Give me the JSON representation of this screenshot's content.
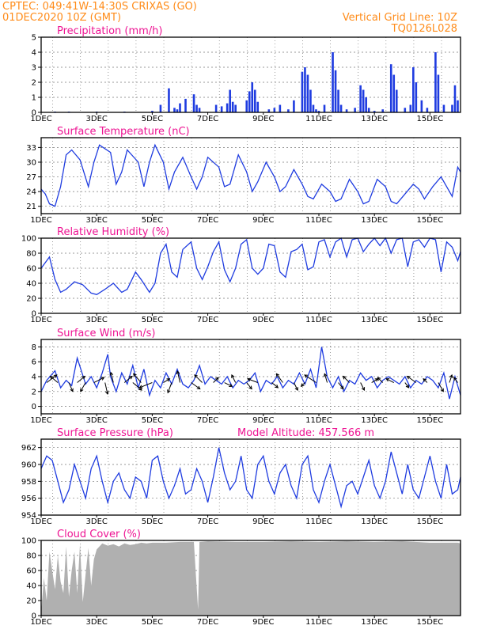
{
  "header": {
    "line1": "CPTEC:   049:41W-14:30S   CRIXAS (GO)",
    "line2": "01DEC2020 10Z (GMT)",
    "grid_note": "Vertical Grid Line: 10Z",
    "run_code": "TQ0126L028"
  },
  "colors": {
    "header": "#ff8c1a",
    "title": "#ee1493",
    "series": "#1f3ce0",
    "cloud": "#b0b0b0",
    "gridline": "#777777"
  },
  "x_ticks": [
    "1DEC",
    "3DEC",
    "5DEC",
    "7DEC",
    "9DEC",
    "11DEC",
    "13DEC",
    "15DEC"
  ],
  "x_range_days": [
    1,
    16.1
  ],
  "chart_data": [
    {
      "id": "precipitation",
      "type": "bar",
      "title": "Precipitation (mm/h)",
      "ylim": [
        0,
        5
      ],
      "yticks": [
        "0",
        "1",
        "2",
        "3",
        "4",
        "5"
      ],
      "x": [
        1.5,
        2.0,
        3.0,
        4.0,
        5.0,
        5.3,
        5.6,
        5.8,
        5.9,
        6.0,
        6.2,
        6.5,
        6.6,
        6.7,
        7.3,
        7.5,
        7.7,
        7.8,
        7.9,
        8.0,
        8.4,
        8.5,
        8.6,
        8.7,
        8.8,
        9.2,
        9.4,
        9.6,
        9.9,
        10.1,
        10.4,
        10.5,
        10.6,
        10.7,
        10.8,
        10.9,
        11.0,
        11.2,
        11.5,
        11.6,
        11.7,
        11.8,
        12.0,
        12.3,
        12.5,
        12.6,
        12.7,
        12.8,
        13.0,
        13.3,
        13.6,
        13.7,
        13.8,
        14.1,
        14.3,
        14.4,
        14.5,
        14.7,
        14.9,
        15.2,
        15.3,
        15.5,
        15.8,
        15.9,
        16.0
      ],
      "values": [
        0.05,
        0.05,
        0.05,
        0.05,
        0.1,
        0.5,
        1.6,
        0.3,
        0.2,
        0.6,
        0.9,
        1.2,
        0.5,
        0.3,
        0.5,
        0.4,
        0.6,
        1.5,
        0.7,
        0.5,
        0.8,
        1.4,
        2.0,
        1.5,
        0.7,
        0.2,
        0.3,
        0.5,
        0.2,
        0.8,
        2.7,
        3.0,
        2.5,
        1.5,
        0.5,
        0.2,
        0.1,
        0.5,
        4.0,
        2.8,
        1.5,
        0.5,
        0.2,
        0.3,
        1.8,
        1.5,
        1.0,
        0.3,
        0.1,
        0.2,
        3.2,
        2.5,
        1.5,
        0.3,
        0.5,
        3.0,
        2.0,
        0.8,
        0.3,
        4.0,
        2.5,
        0.5,
        0.5,
        1.8,
        0.8
      ]
    },
    {
      "id": "surface-temperature",
      "type": "line",
      "title": "Surface Temperature (nC)",
      "ylim": [
        19.5,
        35
      ],
      "yticks": [
        "21",
        "24",
        "27",
        "30",
        "33"
      ],
      "x": [
        1.0,
        1.15,
        1.3,
        1.5,
        1.7,
        1.9,
        2.1,
        2.4,
        2.7,
        2.9,
        3.1,
        3.5,
        3.7,
        3.9,
        4.1,
        4.5,
        4.7,
        4.9,
        5.1,
        5.4,
        5.6,
        5.8,
        6.1,
        6.4,
        6.6,
        6.8,
        7.0,
        7.4,
        7.6,
        7.8,
        8.1,
        8.4,
        8.6,
        8.8,
        9.1,
        9.4,
        9.6,
        9.8,
        10.1,
        10.4,
        10.6,
        10.8,
        11.1,
        11.4,
        11.6,
        11.8,
        12.1,
        12.4,
        12.6,
        12.8,
        13.1,
        13.4,
        13.6,
        13.8,
        14.1,
        14.4,
        14.6,
        14.8,
        15.1,
        15.4,
        15.6,
        15.8,
        16.0,
        16.1
      ],
      "values": [
        24.5,
        23.5,
        21.5,
        21.0,
        25.0,
        31.5,
        32.5,
        30.5,
        25.0,
        30.0,
        33.5,
        32.0,
        25.5,
        28.0,
        32.5,
        30.0,
        25.0,
        30.0,
        33.5,
        30.0,
        24.5,
        28.0,
        31.0,
        27.0,
        24.5,
        27.0,
        31.0,
        29.0,
        25.0,
        25.5,
        31.5,
        28.0,
        24.0,
        26.0,
        30.0,
        27.0,
        24.0,
        25.0,
        28.5,
        25.5,
        23.0,
        22.5,
        25.5,
        24.0,
        22.0,
        22.5,
        26.5,
        24.0,
        21.5,
        22.0,
        26.5,
        25.0,
        22.0,
        21.5,
        23.5,
        25.5,
        24.5,
        22.5,
        25.0,
        27.0,
        25.0,
        23.0,
        29.0,
        28.0
      ]
    },
    {
      "id": "relative-humidity",
      "type": "line",
      "title": "Relative Humidity (%)",
      "ylim": [
        0,
        100
      ],
      "yticks": [
        "0",
        "20",
        "40",
        "60",
        "80",
        "100"
      ],
      "x": [
        1.0,
        1.3,
        1.5,
        1.7,
        1.9,
        2.2,
        2.5,
        2.8,
        3.0,
        3.3,
        3.6,
        3.9,
        4.1,
        4.4,
        4.6,
        4.9,
        5.1,
        5.3,
        5.5,
        5.7,
        5.9,
        6.1,
        6.4,
        6.6,
        6.8,
        7.0,
        7.2,
        7.4,
        7.6,
        7.8,
        8.0,
        8.2,
        8.4,
        8.6,
        8.8,
        9.0,
        9.2,
        9.4,
        9.6,
        9.8,
        10.0,
        10.2,
        10.4,
        10.6,
        10.8,
        11.0,
        11.2,
        11.4,
        11.6,
        11.8,
        12.0,
        12.2,
        12.4,
        12.6,
        12.8,
        13.0,
        13.2,
        13.4,
        13.6,
        13.8,
        14.0,
        14.2,
        14.4,
        14.6,
        14.8,
        15.0,
        15.2,
        15.4,
        15.6,
        15.8,
        16.0,
        16.1
      ],
      "values": [
        60,
        75,
        45,
        28,
        32,
        42,
        38,
        27,
        25,
        32,
        40,
        28,
        32,
        55,
        45,
        28,
        40,
        80,
        92,
        55,
        48,
        85,
        95,
        60,
        45,
        62,
        82,
        95,
        58,
        42,
        60,
        92,
        98,
        60,
        52,
        60,
        92,
        90,
        55,
        48,
        82,
        85,
        92,
        58,
        62,
        95,
        98,
        75,
        95,
        100,
        75,
        98,
        100,
        82,
        92,
        100,
        90,
        100,
        80,
        98,
        100,
        62,
        95,
        98,
        88,
        100,
        98,
        55,
        95,
        88,
        70,
        82
      ]
    },
    {
      "id": "surface-wind",
      "type": "line",
      "title": "Surface Wind (m/s)",
      "ylim": [
        -1,
        9
      ],
      "yticks": [
        "0",
        "2",
        "4",
        "6",
        "8"
      ],
      "x": [
        1.0,
        1.2,
        1.5,
        1.7,
        1.9,
        2.1,
        2.3,
        2.6,
        2.8,
        3.0,
        3.2,
        3.4,
        3.5,
        3.7,
        3.9,
        4.1,
        4.3,
        4.5,
        4.7,
        4.9,
        5.1,
        5.3,
        5.5,
        5.7,
        5.9,
        6.1,
        6.3,
        6.5,
        6.7,
        6.9,
        7.1,
        7.3,
        7.5,
        7.7,
        7.9,
        8.1,
        8.3,
        8.5,
        8.7,
        8.9,
        9.1,
        9.3,
        9.5,
        9.7,
        9.9,
        10.1,
        10.3,
        10.5,
        10.7,
        10.9,
        11.1,
        11.3,
        11.5,
        11.7,
        11.9,
        12.1,
        12.3,
        12.5,
        12.7,
        12.9,
        13.1,
        13.3,
        13.5,
        13.7,
        13.9,
        14.1,
        14.3,
        14.5,
        14.7,
        14.9,
        15.1,
        15.3,
        15.5,
        15.7,
        15.9,
        16.1
      ],
      "values": [
        2.0,
        3.5,
        4.8,
        2.5,
        3.5,
        2.8,
        6.5,
        3.0,
        4.0,
        2.5,
        4.5,
        7.0,
        4.0,
        2.0,
        4.5,
        3.0,
        5.5,
        2.5,
        5.0,
        1.5,
        3.5,
        2.5,
        4.5,
        3.0,
        5.0,
        3.0,
        2.5,
        3.5,
        5.5,
        3.0,
        4.0,
        3.5,
        3.0,
        4.0,
        2.5,
        3.5,
        3.0,
        3.5,
        4.5,
        2.0,
        3.5,
        3.0,
        4.0,
        2.5,
        3.5,
        3.0,
        4.5,
        3.0,
        5.0,
        2.5,
        8.0,
        4.0,
        2.5,
        4.0,
        2.0,
        3.5,
        3.0,
        4.5,
        3.5,
        4.0,
        2.5,
        3.5,
        4.0,
        3.5,
        3.0,
        4.0,
        2.5,
        3.5,
        3.0,
        4.0,
        3.5,
        2.5,
        4.5,
        1.0,
        4.0,
        1.5
      ]
    },
    {
      "id": "surface-pressure",
      "type": "line",
      "title": "Surface Pressure (hPa)",
      "annotation": "Model Altitude: 457.566 m",
      "ylim": [
        954,
        963
      ],
      "yticks": [
        "954",
        "956",
        "958",
        "960",
        "962"
      ],
      "x": [
        1.0,
        1.2,
        1.4,
        1.6,
        1.8,
        2.0,
        2.2,
        2.4,
        2.6,
        2.8,
        3.0,
        3.2,
        3.4,
        3.6,
        3.8,
        4.0,
        4.2,
        4.4,
        4.6,
        4.8,
        5.0,
        5.2,
        5.4,
        5.6,
        5.8,
        6.0,
        6.2,
        6.4,
        6.6,
        6.8,
        7.0,
        7.2,
        7.4,
        7.6,
        7.8,
        8.0,
        8.2,
        8.4,
        8.6,
        8.8,
        9.0,
        9.2,
        9.4,
        9.6,
        9.8,
        10.0,
        10.2,
        10.4,
        10.6,
        10.8,
        11.0,
        11.2,
        11.4,
        11.6,
        11.8,
        12.0,
        12.2,
        12.4,
        12.6,
        12.8,
        13.0,
        13.2,
        13.4,
        13.6,
        13.8,
        14.0,
        14.2,
        14.4,
        14.6,
        14.8,
        15.0,
        15.2,
        15.4,
        15.6,
        15.8,
        16.0,
        16.1
      ],
      "values": [
        959.5,
        961.0,
        960.5,
        958.0,
        955.5,
        957.0,
        960.0,
        958.0,
        956.0,
        959.5,
        961.0,
        958.0,
        955.5,
        958.0,
        959.0,
        957.0,
        956.0,
        958.5,
        958.0,
        956.0,
        960.5,
        961.0,
        958.0,
        956.0,
        957.5,
        959.5,
        956.5,
        957.0,
        959.5,
        958.0,
        955.5,
        958.5,
        962.0,
        959.0,
        957.0,
        958.0,
        961.0,
        957.0,
        956.0,
        960.0,
        961.0,
        958.0,
        956.5,
        959.0,
        960.0,
        957.5,
        956.0,
        960.0,
        961.0,
        957.0,
        955.5,
        958.0,
        960.0,
        957.5,
        955.0,
        957.5,
        958.0,
        956.5,
        958.5,
        960.5,
        957.5,
        956.0,
        958.0,
        961.5,
        959.0,
        956.5,
        960.0,
        957.0,
        956.0,
        958.5,
        961.0,
        958.0,
        956.0,
        960.0,
        956.5,
        957.0,
        958.5
      ]
    },
    {
      "id": "cloud-cover",
      "type": "area",
      "title": "Cloud Cover (%)",
      "ylim": [
        0,
        100
      ],
      "yticks": [
        "0",
        "20",
        "40",
        "60",
        "80",
        "100"
      ],
      "x": [
        1.0,
        1.1,
        1.2,
        1.3,
        1.4,
        1.5,
        1.6,
        1.7,
        1.8,
        1.9,
        2.0,
        2.1,
        2.2,
        2.3,
        2.4,
        2.5,
        2.6,
        2.7,
        2.8,
        2.9,
        3.0,
        3.2,
        3.4,
        3.6,
        3.8,
        4.0,
        4.2,
        4.4,
        4.6,
        4.8,
        5.0,
        5.5,
        6.0,
        6.5,
        6.65,
        6.7,
        7.0,
        8.0,
        9.0,
        10.0,
        11.0,
        12.0,
        13.0,
        14.0,
        15.0,
        16.0,
        16.1
      ],
      "values": [
        5,
        50,
        20,
        85,
        60,
        35,
        80,
        45,
        30,
        92,
        25,
        60,
        85,
        30,
        95,
        18,
        55,
        90,
        40,
        75,
        88,
        96,
        93,
        95,
        92,
        96,
        94,
        95,
        97,
        96,
        97,
        97,
        98,
        98,
        8,
        98,
        99,
        98,
        98,
        99,
        98,
        99,
        98,
        99,
        97,
        97,
        96
      ]
    },
    {
      "id": "wind-arrows",
      "type": "scatter",
      "x": [
        1.2,
        1.6,
        2.0,
        2.3,
        2.6,
        2.9,
        3.3,
        3.6,
        4.0,
        4.3,
        4.6,
        5.0,
        5.4,
        5.7,
        6.0,
        6.4,
        6.8,
        7.2,
        7.6,
        8.0,
        8.4,
        8.8,
        9.3,
        9.7,
        10.1,
        10.5,
        10.9,
        11.3,
        11.7,
        12.1,
        12.5,
        12.9,
        13.3,
        13.7,
        14.1,
        14.5,
        14.9,
        15.3,
        15.7,
        16.0
      ],
      "u": [
        0.8,
        -0.6,
        0.3,
        0.6,
        -0.4,
        0.8,
        0.2,
        -0.2,
        0.6,
        0.7,
        -0.6,
        -1.0,
        0.5,
        -0.3,
        -0.2,
        0.7,
        -0.6,
        0.4,
        0.6,
        -0.3,
        0.4,
        -0.8,
        0.5,
        -0.5,
        0.3,
        -0.3,
        -0.9,
        -0.2,
        0.4,
        -0.5,
        0.3,
        0.5,
        -0.4,
        -0.6,
        0.3,
        -0.7,
        -0.3,
        0.4,
        0.2,
        -0.3
      ],
      "v": [
        0.6,
        0.5,
        -0.7,
        0.5,
        -0.7,
        0.4,
        -0.9,
        0.8,
        0.5,
        -0.6,
        0.7,
        -0.4,
        0.3,
        -0.8,
        0.9,
        -0.5,
        0.6,
        0.4,
        -0.3,
        0.6,
        -0.5,
        0.3,
        -0.4,
        0.7,
        -0.6,
        -0.3,
        0.6,
        0.7,
        -0.5,
        0.5,
        -0.6,
        0.3,
        0.4,
        0.3,
        -0.4,
        0.5,
        0.3,
        -0.7,
        0.6,
        0.4
      ]
    }
  ]
}
